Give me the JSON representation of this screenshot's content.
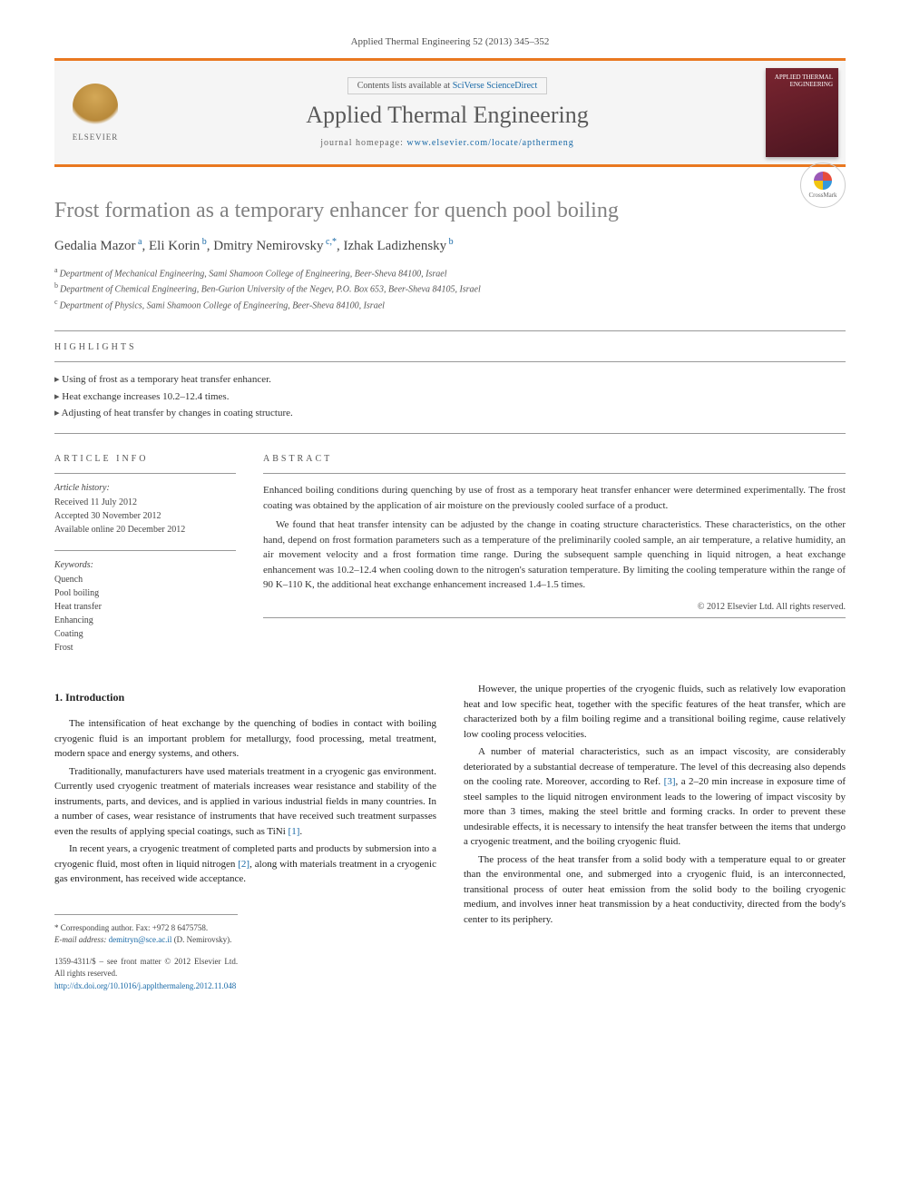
{
  "journal_ref": "Applied Thermal Engineering 52 (2013) 345–352",
  "header": {
    "contents_prefix": "Contents lists available at ",
    "contents_link": "SciVerse ScienceDirect",
    "journal_name": "Applied Thermal Engineering",
    "homepage_prefix": "journal homepage: ",
    "homepage_url": "www.elsevier.com/locate/apthermeng",
    "elsevier_label": "ELSEVIER",
    "cover_text": "APPLIED THERMAL ENGINEERING"
  },
  "crossmark_label": "CrossMark",
  "title": "Frost formation as a temporary enhancer for quench pool boiling",
  "authors_html": "Gedalia Mazor|a|, Eli Korin|b|, Dmitry Nemirovsky|c,*|, Izhak Ladizhensky|b|",
  "authors": [
    {
      "name": "Gedalia Mazor",
      "sup": "a"
    },
    {
      "name": "Eli Korin",
      "sup": "b"
    },
    {
      "name": "Dmitry Nemirovsky",
      "sup": "c,*"
    },
    {
      "name": "Izhak Ladizhensky",
      "sup": "b"
    }
  ],
  "affiliations": [
    {
      "sup": "a",
      "text": "Department of Mechanical Engineering, Sami Shamoon College of Engineering, Beer-Sheva 84100, Israel"
    },
    {
      "sup": "b",
      "text": "Department of Chemical Engineering, Ben-Gurion University of the Negev, P.O. Box 653, Beer-Sheva 84105, Israel"
    },
    {
      "sup": "c",
      "text": "Department of Physics, Sami Shamoon College of Engineering, Beer-Sheva 84100, Israel"
    }
  ],
  "highlights_label": "HIGHLIGHTS",
  "highlights": [
    "Using of frost as a temporary heat transfer enhancer.",
    "Heat exchange increases 10.2–12.4 times.",
    "Adjusting of heat transfer by changes in coating structure."
  ],
  "article_info_label": "ARTICLE INFO",
  "abstract_label": "ABSTRACT",
  "history_label": "Article history:",
  "history": [
    "Received 11 July 2012",
    "Accepted 30 November 2012",
    "Available online 20 December 2012"
  ],
  "keywords_label": "Keywords:",
  "keywords": [
    "Quench",
    "Pool boiling",
    "Heat transfer",
    "Enhancing",
    "Coating",
    "Frost"
  ],
  "abstract_paragraphs": [
    "Enhanced boiling conditions during quenching by use of frost as a temporary heat transfer enhancer were determined experimentally. The frost coating was obtained by the application of air moisture on the previously cooled surface of a product.",
    "We found that heat transfer intensity can be adjusted by the change in coating structure characteristics. These characteristics, on the other hand, depend on frost formation parameters such as a temperature of the preliminarily cooled sample, an air temperature, a relative humidity, an air movement velocity and a frost formation time range. During the subsequent sample quenching in liquid nitrogen, a heat exchange enhancement was 10.2–12.4 when cooling down to the nitrogen's saturation temperature. By limiting the cooling temperature within the range of 90 K–110 K, the additional heat exchange enhancement increased 1.4–1.5 times."
  ],
  "copyright": "© 2012 Elsevier Ltd. All rights reserved.",
  "intro_heading": "1. Introduction",
  "col1_paragraphs": [
    "The intensification of heat exchange by the quenching of bodies in contact with boiling cryogenic fluid is an important problem for metallurgy, food processing, metal treatment, modern space and energy systems, and others.",
    "Traditionally, manufacturers have used materials treatment in a cryogenic gas environment. Currently used cryogenic treatment of materials increases wear resistance and stability of the instruments, parts, and devices, and is applied in various industrial fields in many countries. In a number of cases, wear resistance of instruments that have received such treatment surpasses even the results of applying special coatings, such as TiNi [1].",
    "In recent years, a cryogenic treatment of completed parts and products by submersion into a cryogenic fluid, most often in liquid nitrogen [2], along with materials treatment in a cryogenic gas environment, has received wide acceptance."
  ],
  "col2_paragraphs": [
    "However, the unique properties of the cryogenic fluids, such as relatively low evaporation heat and low specific heat, together with the specific features of the heat transfer, which are characterized both by a film boiling regime and a transitional boiling regime, cause relatively low cooling process velocities.",
    "A number of material characteristics, such as an impact viscosity, are considerably deteriorated by a substantial decrease of temperature. The level of this decreasing also depends on the cooling rate. Moreover, according to Ref. [3], a 2–20 min increase in exposure time of steel samples to the liquid nitrogen environment leads to the lowering of impact viscosity by more than 3 times, making the steel brittle and forming cracks. In order to prevent these undesirable effects, it is necessary to intensify the heat transfer between the items that undergo a cryogenic treatment, and the boiling cryogenic fluid.",
    "The process of the heat transfer from a solid body with a temperature equal to or greater than the environmental one, and submerged into a cryogenic fluid, is an interconnected, transitional process of outer heat emission from the solid body to the boiling cryogenic medium, and involves inner heat transmission by a heat conductivity, directed from the body's center to its periphery."
  ],
  "footer": {
    "corresponding": "* Corresponding author. Fax: +972 8 6475758.",
    "email_label": "E-mail address:",
    "email": "demitryn@sce.ac.il",
    "email_name": "(D. Nemirovsky).",
    "issn": "1359-4311/$ – see front matter © 2012 Elsevier Ltd. All rights reserved.",
    "doi": "http://dx.doi.org/10.1016/j.applthermaleng.2012.11.048"
  },
  "colors": {
    "accent_orange": "#e97820",
    "link_blue": "#1768a6",
    "title_gray": "#818181",
    "cover_maroon": "#7a2530"
  }
}
